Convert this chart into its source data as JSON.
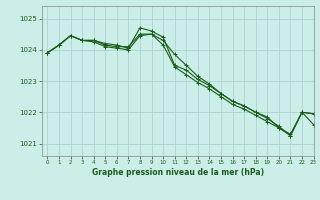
{
  "title": "Graphe pression niveau de la mer (hPa)",
  "background_color": "#cceee8",
  "grid_color": "#aad4ce",
  "line_color": "#1a5c1a",
  "xlim": [
    -0.5,
    23
  ],
  "ylim": [
    1020.6,
    1025.4
  ],
  "yticks": [
    1021,
    1022,
    1023,
    1024,
    1025
  ],
  "xticks": [
    0,
    1,
    2,
    3,
    4,
    5,
    6,
    7,
    8,
    9,
    10,
    11,
    12,
    13,
    14,
    15,
    16,
    17,
    18,
    19,
    20,
    21,
    22,
    23
  ],
  "series": [
    [
      1023.9,
      1024.15,
      1024.45,
      1024.3,
      1024.3,
      1024.2,
      1024.15,
      1024.05,
      1024.7,
      1024.6,
      1024.4,
      1023.5,
      1023.35,
      1023.05,
      1022.85,
      1022.6,
      1022.35,
      1022.2,
      1022.0,
      1021.8,
      1021.55,
      1021.25,
      1022.0,
      1021.95
    ],
    [
      1023.9,
      1024.15,
      1024.45,
      1024.3,
      1024.3,
      1024.15,
      1024.1,
      1024.1,
      1024.5,
      1024.5,
      1024.15,
      1023.45,
      1023.2,
      1022.95,
      1022.75,
      1022.5,
      1022.25,
      1022.1,
      1021.9,
      1021.7,
      1021.5,
      1021.25,
      1022.0,
      1021.95
    ],
    [
      1023.9,
      1024.15,
      1024.45,
      1024.3,
      1024.25,
      1024.1,
      1024.05,
      1024.0,
      1024.45,
      1024.5,
      1024.3,
      1023.85,
      1023.5,
      1023.15,
      1022.9,
      1022.6,
      1022.35,
      1022.2,
      1022.0,
      1021.85,
      1021.5,
      1021.3,
      1022.0,
      1021.6
    ]
  ]
}
